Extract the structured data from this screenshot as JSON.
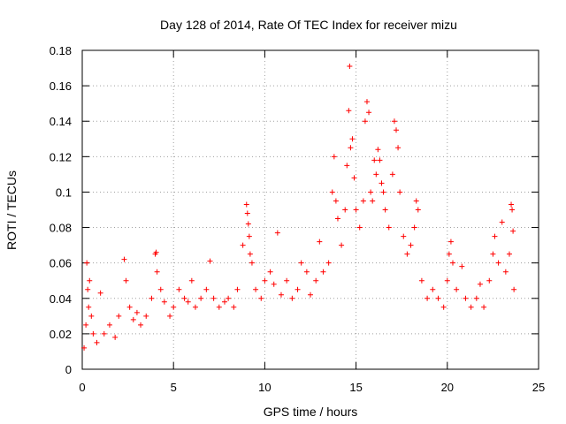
{
  "chart_data": {
    "type": "scatter",
    "title": "Day 128 of 2014, Rate Of TEC Index for receiver mizu",
    "xlabel": "GPS time / hours",
    "ylabel": "ROTI / TECUs",
    "xlim": [
      0,
      25
    ],
    "ylim": [
      0,
      0.18
    ],
    "xticks": [
      0,
      5,
      10,
      15,
      20,
      25
    ],
    "yticks": [
      0,
      0.02,
      0.04,
      0.06,
      0.08,
      0.1,
      0.12,
      0.14,
      0.16,
      0.18
    ],
    "xtick_labels": [
      "0",
      "5",
      "10",
      "15",
      "20",
      "25"
    ],
    "ytick_labels": [
      "0",
      "0.02",
      "0.04",
      "0.06",
      "0.08",
      "0.1",
      "0.12",
      "0.14",
      "0.16",
      "0.18"
    ],
    "grid": true,
    "marker": "+",
    "color": "#ff0000",
    "series": [
      {
        "name": "ROTI",
        "points": [
          [
            0.1,
            0.012
          ],
          [
            0.2,
            0.025
          ],
          [
            0.25,
            0.06
          ],
          [
            0.3,
            0.045
          ],
          [
            0.35,
            0.035
          ],
          [
            0.4,
            0.05
          ],
          [
            0.5,
            0.03
          ],
          [
            0.6,
            0.02
          ],
          [
            0.8,
            0.015
          ],
          [
            1.0,
            0.043
          ],
          [
            1.2,
            0.02
          ],
          [
            1.5,
            0.025
          ],
          [
            1.8,
            0.018
          ],
          [
            2.0,
            0.03
          ],
          [
            2.3,
            0.062
          ],
          [
            2.4,
            0.05
          ],
          [
            2.6,
            0.035
          ],
          [
            2.8,
            0.028
          ],
          [
            3.0,
            0.032
          ],
          [
            3.2,
            0.025
          ],
          [
            3.5,
            0.03
          ],
          [
            3.8,
            0.04
          ],
          [
            4.0,
            0.065
          ],
          [
            4.05,
            0.066
          ],
          [
            4.1,
            0.055
          ],
          [
            4.3,
            0.045
          ],
          [
            4.5,
            0.038
          ],
          [
            4.8,
            0.03
          ],
          [
            5.0,
            0.035
          ],
          [
            5.3,
            0.045
          ],
          [
            5.6,
            0.04
          ],
          [
            5.8,
            0.038
          ],
          [
            6.0,
            0.05
          ],
          [
            6.2,
            0.035
          ],
          [
            6.5,
            0.04
          ],
          [
            6.8,
            0.045
          ],
          [
            7.0,
            0.061
          ],
          [
            7.2,
            0.04
          ],
          [
            7.5,
            0.035
          ],
          [
            7.8,
            0.038
          ],
          [
            8.0,
            0.04
          ],
          [
            8.3,
            0.035
          ],
          [
            8.5,
            0.045
          ],
          [
            8.8,
            0.07
          ],
          [
            9.0,
            0.093
          ],
          [
            9.05,
            0.088
          ],
          [
            9.1,
            0.082
          ],
          [
            9.15,
            0.075
          ],
          [
            9.2,
            0.065
          ],
          [
            9.3,
            0.06
          ],
          [
            9.5,
            0.045
          ],
          [
            9.8,
            0.04
          ],
          [
            10.0,
            0.05
          ],
          [
            10.3,
            0.055
          ],
          [
            10.5,
            0.048
          ],
          [
            10.7,
            0.077
          ],
          [
            10.9,
            0.042
          ],
          [
            11.2,
            0.05
          ],
          [
            11.5,
            0.04
          ],
          [
            11.8,
            0.045
          ],
          [
            12.0,
            0.06
          ],
          [
            12.3,
            0.055
          ],
          [
            12.5,
            0.042
          ],
          [
            12.8,
            0.05
          ],
          [
            13.0,
            0.072
          ],
          [
            13.2,
            0.055
          ],
          [
            13.5,
            0.06
          ],
          [
            13.7,
            0.1
          ],
          [
            13.8,
            0.12
          ],
          [
            13.9,
            0.095
          ],
          [
            14.0,
            0.085
          ],
          [
            14.2,
            0.07
          ],
          [
            14.4,
            0.09
          ],
          [
            14.5,
            0.115
          ],
          [
            14.6,
            0.146
          ],
          [
            14.65,
            0.171
          ],
          [
            14.7,
            0.125
          ],
          [
            14.8,
            0.13
          ],
          [
            14.9,
            0.108
          ],
          [
            15.0,
            0.09
          ],
          [
            15.2,
            0.08
          ],
          [
            15.4,
            0.095
          ],
          [
            15.5,
            0.14
          ],
          [
            15.6,
            0.151
          ],
          [
            15.7,
            0.145
          ],
          [
            15.8,
            0.1
          ],
          [
            15.9,
            0.095
          ],
          [
            16.0,
            0.118
          ],
          [
            16.1,
            0.11
          ],
          [
            16.2,
            0.124
          ],
          [
            16.3,
            0.118
          ],
          [
            16.4,
            0.105
          ],
          [
            16.5,
            0.1
          ],
          [
            16.6,
            0.09
          ],
          [
            16.8,
            0.08
          ],
          [
            17.0,
            0.11
          ],
          [
            17.1,
            0.14
          ],
          [
            17.2,
            0.135
          ],
          [
            17.3,
            0.125
          ],
          [
            17.4,
            0.1
          ],
          [
            17.6,
            0.075
          ],
          [
            17.8,
            0.065
          ],
          [
            18.0,
            0.07
          ],
          [
            18.2,
            0.08
          ],
          [
            18.3,
            0.095
          ],
          [
            18.4,
            0.09
          ],
          [
            18.6,
            0.05
          ],
          [
            18.9,
            0.04
          ],
          [
            19.2,
            0.045
          ],
          [
            19.5,
            0.04
          ],
          [
            19.8,
            0.035
          ],
          [
            20.0,
            0.05
          ],
          [
            20.1,
            0.065
          ],
          [
            20.2,
            0.072
          ],
          [
            20.3,
            0.06
          ],
          [
            20.5,
            0.045
          ],
          [
            20.8,
            0.058
          ],
          [
            21.0,
            0.04
          ],
          [
            21.3,
            0.035
          ],
          [
            21.6,
            0.04
          ],
          [
            21.8,
            0.048
          ],
          [
            22.0,
            0.035
          ],
          [
            22.3,
            0.05
          ],
          [
            22.5,
            0.065
          ],
          [
            22.6,
            0.075
          ],
          [
            22.8,
            0.06
          ],
          [
            23.0,
            0.083
          ],
          [
            23.2,
            0.055
          ],
          [
            23.4,
            0.065
          ],
          [
            23.5,
            0.093
          ],
          [
            23.55,
            0.09
          ],
          [
            23.6,
            0.078
          ],
          [
            23.65,
            0.045
          ]
        ]
      }
    ]
  }
}
